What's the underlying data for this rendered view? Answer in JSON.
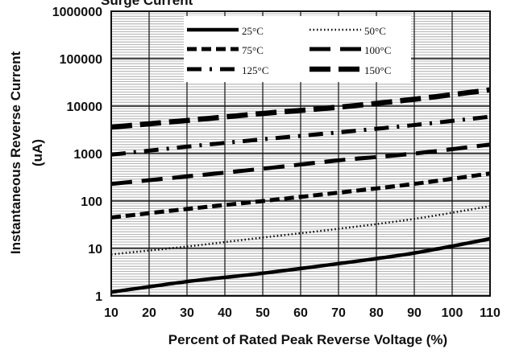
{
  "chart_data": {
    "type": "line",
    "title": "Surge Current",
    "xlabel": "Percent of  Rated Peak Reverse Voltage (%)",
    "ylabel_line1": "Instantaneous Reverse Current",
    "ylabel_line2": "(uA)",
    "y_scale": "log",
    "xlim": [
      10,
      110
    ],
    "ylim": [
      1,
      1000000
    ],
    "x_ticks": [
      "10",
      "20",
      "30",
      "40",
      "50",
      "60",
      "70",
      "80",
      "90",
      "100",
      "110"
    ],
    "y_ticks": [
      "1",
      "10",
      "100",
      "1000",
      "10000",
      "100000",
      "1000000"
    ],
    "grid": true,
    "legend_position": "top",
    "series": [
      {
        "name": "25°C",
        "style": "solid",
        "x": [
          10,
          30,
          50,
          70,
          90,
          110
        ],
        "y": [
          1.2,
          2.0,
          3.0,
          4.8,
          8.0,
          16
        ]
      },
      {
        "name": "50°C",
        "style": "dotted",
        "x": [
          10,
          30,
          50,
          70,
          90,
          110
        ],
        "y": [
          7.5,
          11,
          17,
          26,
          42,
          78
        ]
      },
      {
        "name": "75°C",
        "style": "dashed",
        "x": [
          10,
          30,
          50,
          70,
          90,
          110
        ],
        "y": [
          45,
          68,
          100,
          150,
          230,
          380
        ]
      },
      {
        "name": "100°C",
        "style": "long-dash",
        "x": [
          10,
          30,
          50,
          70,
          90,
          110
        ],
        "y": [
          230,
          330,
          480,
          720,
          1000,
          1550
        ]
      },
      {
        "name": "125°C",
        "style": "dash-dot",
        "x": [
          10,
          30,
          50,
          70,
          90,
          110
        ],
        "y": [
          950,
          1400,
          2000,
          2800,
          4000,
          6000
        ]
      },
      {
        "name": "150°C",
        "style": "heavy-dash",
        "x": [
          10,
          30,
          50,
          70,
          90,
          110
        ],
        "y": [
          3600,
          5000,
          7000,
          9500,
          14000,
          22000
        ]
      }
    ]
  }
}
